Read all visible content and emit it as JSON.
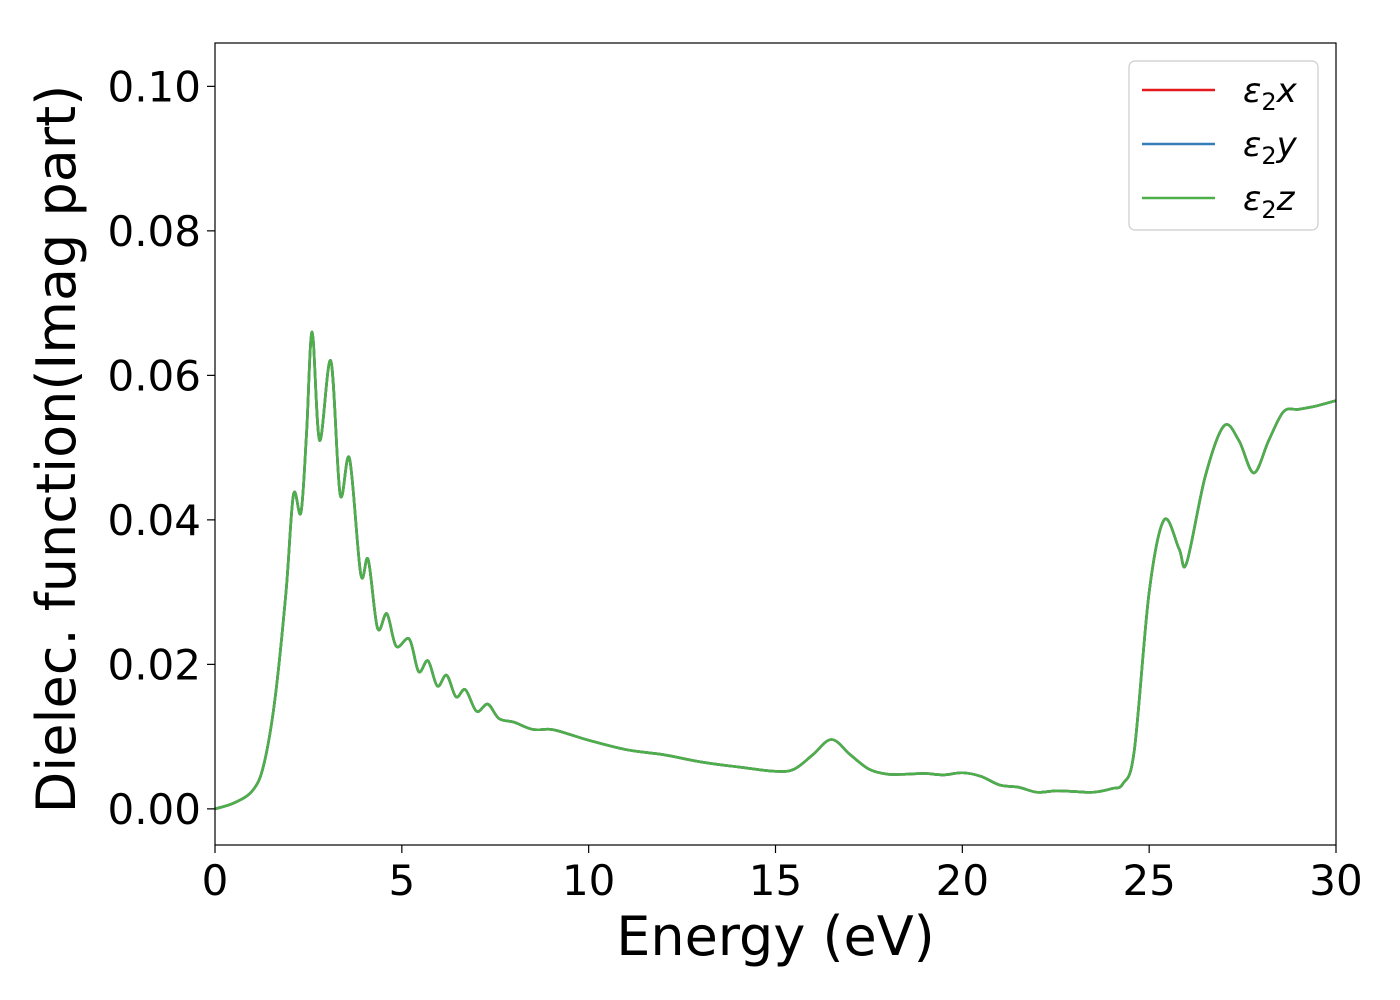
{
  "chart_data": {
    "type": "line",
    "xlabel": "Energy (eV)",
    "ylabel": "Dielec. function(Imag part)",
    "xlim": [
      0,
      30
    ],
    "ylim": [
      -0.005,
      0.106
    ],
    "xticks": [
      0,
      5,
      10,
      15,
      20,
      25,
      30
    ],
    "xtick_labels": [
      "0",
      "5",
      "10",
      "15",
      "20",
      "25",
      "30"
    ],
    "yticks": [
      0.0,
      0.02,
      0.04,
      0.06,
      0.08,
      0.1
    ],
    "ytick_labels": [
      "0.00",
      "0.02",
      "0.04",
      "0.06",
      "0.08",
      "0.10"
    ],
    "grid": false,
    "legend_position": "top-right",
    "legend": [
      {
        "label_base": "ε",
        "label_sub": "2",
        "label_tail": "x",
        "color": "#e41a1c"
      },
      {
        "label_base": "ε",
        "label_sub": "2",
        "label_tail": "y",
        "color": "#377eb8"
      },
      {
        "label_base": "ε",
        "label_sub": "2",
        "label_tail": "z",
        "color": "#4daf4a"
      }
    ],
    "series": [
      {
        "name": "ε2x",
        "color": "#e41a1c",
        "x": [
          0,
          0.5,
          1.0,
          1.3,
          1.6,
          1.9,
          2.1,
          2.3,
          2.45,
          2.6,
          2.8,
          3.1,
          3.35,
          3.6,
          3.9,
          4.1,
          4.35,
          4.6,
          4.85,
          5.2,
          5.45,
          5.7,
          5.95,
          6.2,
          6.45,
          6.7,
          7.0,
          7.3,
          7.6,
          8.0,
          8.5,
          9.0,
          9.5,
          10.0,
          11.0,
          12.0,
          13.0,
          14.0,
          15.0,
          15.5,
          16.0,
          16.5,
          17.0,
          17.5,
          18.0,
          18.5,
          19.0,
          19.5,
          20.0,
          20.5,
          21.0,
          21.5,
          22.0,
          22.5,
          23.0,
          23.5,
          24.0,
          24.3,
          24.6,
          25.0,
          25.4,
          25.8,
          26.0,
          26.5,
          27.0,
          27.4,
          27.8,
          28.2,
          28.6,
          29.0,
          29.5,
          30.0
        ],
        "values": [
          0.0,
          0.0008,
          0.0025,
          0.006,
          0.015,
          0.03,
          0.0435,
          0.041,
          0.052,
          0.066,
          0.051,
          0.062,
          0.0435,
          0.0485,
          0.0325,
          0.0345,
          0.025,
          0.027,
          0.0225,
          0.0235,
          0.019,
          0.0205,
          0.017,
          0.0185,
          0.0155,
          0.0165,
          0.0135,
          0.0145,
          0.0125,
          0.012,
          0.011,
          0.011,
          0.0103,
          0.0095,
          0.0082,
          0.0075,
          0.0065,
          0.0058,
          0.0052,
          0.0055,
          0.0075,
          0.0096,
          0.0075,
          0.0055,
          0.0048,
          0.0048,
          0.0049,
          0.0047,
          0.005,
          0.0045,
          0.0033,
          0.003,
          0.0023,
          0.0025,
          0.0024,
          0.0023,
          0.0028,
          0.0035,
          0.008,
          0.03,
          0.04,
          0.036,
          0.034,
          0.046,
          0.053,
          0.051,
          0.0465,
          0.051,
          0.055,
          0.0553,
          0.0558,
          0.0565
        ]
      },
      {
        "name": "ε2y",
        "color": "#377eb8",
        "x": [
          0,
          0.5,
          1.0,
          1.3,
          1.6,
          1.9,
          2.1,
          2.3,
          2.45,
          2.6,
          2.8,
          3.1,
          3.35,
          3.6,
          3.9,
          4.1,
          4.35,
          4.6,
          4.85,
          5.2,
          5.45,
          5.7,
          5.95,
          6.2,
          6.45,
          6.7,
          7.0,
          7.3,
          7.6,
          8.0,
          8.5,
          9.0,
          9.5,
          10.0,
          11.0,
          12.0,
          13.0,
          14.0,
          15.0,
          15.5,
          16.0,
          16.5,
          17.0,
          17.5,
          18.0,
          18.5,
          19.0,
          19.5,
          20.0,
          20.5,
          21.0,
          21.5,
          22.0,
          22.5,
          23.0,
          23.5,
          24.0,
          24.3,
          24.6,
          25.0,
          25.4,
          25.8,
          26.0,
          26.5,
          27.0,
          27.4,
          27.8,
          28.2,
          28.6,
          29.0,
          29.5,
          30.0
        ],
        "values": [
          0.0,
          0.0008,
          0.0025,
          0.006,
          0.015,
          0.03,
          0.0435,
          0.041,
          0.052,
          0.066,
          0.051,
          0.062,
          0.0435,
          0.0485,
          0.0325,
          0.0345,
          0.025,
          0.027,
          0.0225,
          0.0235,
          0.019,
          0.0205,
          0.017,
          0.0185,
          0.0155,
          0.0165,
          0.0135,
          0.0145,
          0.0125,
          0.012,
          0.011,
          0.011,
          0.0103,
          0.0095,
          0.0082,
          0.0075,
          0.0065,
          0.0058,
          0.0052,
          0.0055,
          0.0075,
          0.0096,
          0.0075,
          0.0055,
          0.0048,
          0.0048,
          0.0049,
          0.0047,
          0.005,
          0.0045,
          0.0033,
          0.003,
          0.0023,
          0.0025,
          0.0024,
          0.0023,
          0.0028,
          0.0035,
          0.008,
          0.03,
          0.04,
          0.036,
          0.034,
          0.046,
          0.053,
          0.051,
          0.0465,
          0.051,
          0.055,
          0.0553,
          0.0558,
          0.0565
        ]
      },
      {
        "name": "ε2z",
        "color": "#4daf4a",
        "x": [
          0,
          0.5,
          1.0,
          1.3,
          1.6,
          1.9,
          2.1,
          2.3,
          2.45,
          2.6,
          2.8,
          3.1,
          3.35,
          3.6,
          3.9,
          4.1,
          4.35,
          4.6,
          4.85,
          5.2,
          5.45,
          5.7,
          5.95,
          6.2,
          6.45,
          6.7,
          7.0,
          7.3,
          7.6,
          8.0,
          8.5,
          9.0,
          9.5,
          10.0,
          11.0,
          12.0,
          13.0,
          14.0,
          15.0,
          15.5,
          16.0,
          16.5,
          17.0,
          17.5,
          18.0,
          18.5,
          19.0,
          19.5,
          20.0,
          20.5,
          21.0,
          21.5,
          22.0,
          22.5,
          23.0,
          23.5,
          24.0,
          24.3,
          24.6,
          25.0,
          25.4,
          25.8,
          26.0,
          26.5,
          27.0,
          27.4,
          27.8,
          28.2,
          28.6,
          29.0,
          29.5,
          30.0
        ],
        "values": [
          0.0,
          0.0008,
          0.0025,
          0.006,
          0.015,
          0.03,
          0.0435,
          0.041,
          0.052,
          0.066,
          0.051,
          0.062,
          0.0435,
          0.0485,
          0.0325,
          0.0345,
          0.025,
          0.027,
          0.0225,
          0.0235,
          0.019,
          0.0205,
          0.017,
          0.0185,
          0.0155,
          0.0165,
          0.0135,
          0.0145,
          0.0125,
          0.012,
          0.011,
          0.011,
          0.0103,
          0.0095,
          0.0082,
          0.0075,
          0.0065,
          0.0058,
          0.0052,
          0.0055,
          0.0075,
          0.0096,
          0.0075,
          0.0055,
          0.0048,
          0.0048,
          0.0049,
          0.0047,
          0.005,
          0.0045,
          0.0033,
          0.003,
          0.0023,
          0.0025,
          0.0024,
          0.0023,
          0.0028,
          0.0035,
          0.008,
          0.03,
          0.04,
          0.036,
          0.034,
          0.046,
          0.053,
          0.051,
          0.0465,
          0.051,
          0.055,
          0.0553,
          0.0558,
          0.0565
        ]
      }
    ]
  }
}
